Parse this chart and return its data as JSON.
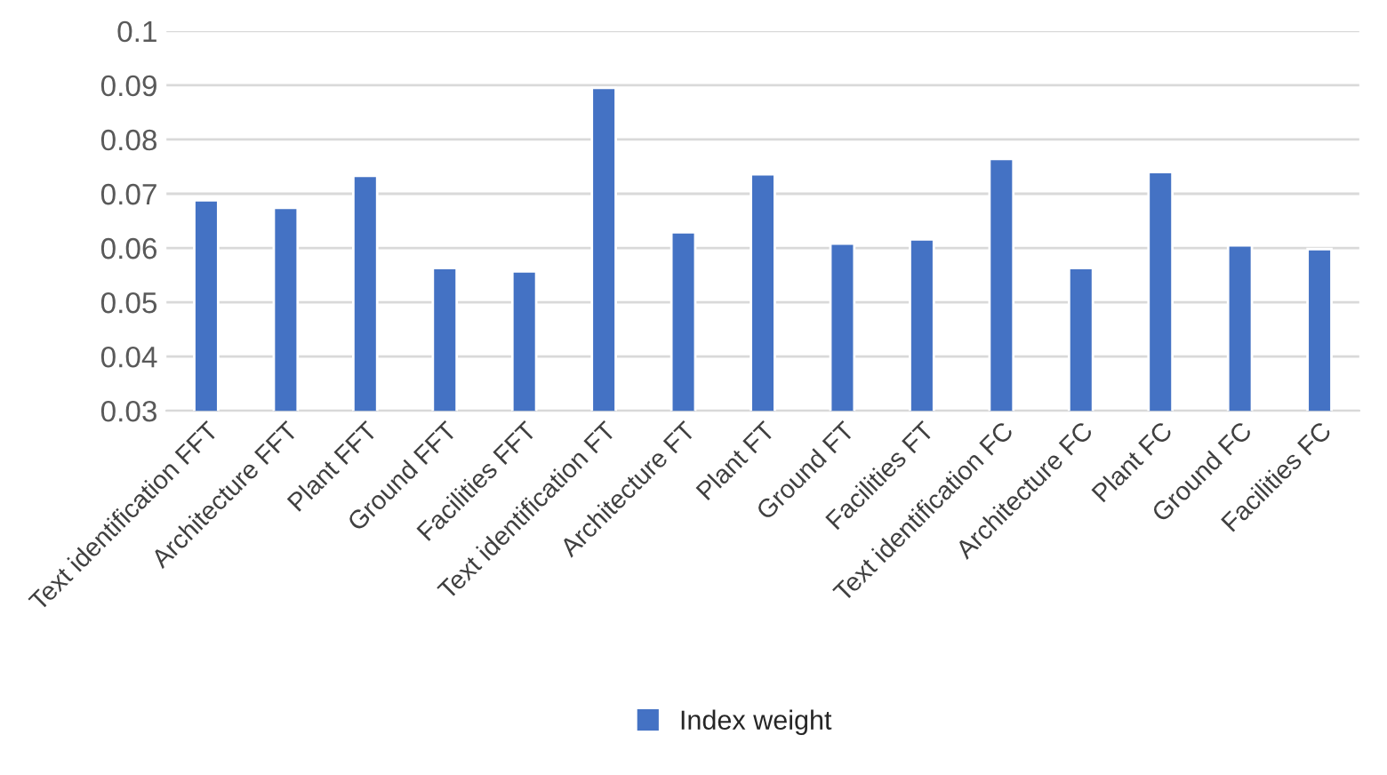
{
  "chart_data": {
    "type": "bar",
    "categories": [
      "Text identification FFT",
      "Architecture FFT",
      "Plant FFT",
      "Ground FFT",
      "Facilities FFT",
      "Text identification FT",
      "Architecture FT",
      "Plant FT",
      "Ground FT",
      "Facilities FT",
      "Text identification FC",
      "Architecture FC",
      "Plant FC",
      "Ground FC",
      "Facilities FC"
    ],
    "series": [
      {
        "name": "Index weight",
        "color": "#4472c4",
        "values": [
          0.0688,
          0.0674,
          0.0733,
          0.0563,
          0.0557,
          0.0895,
          0.0629,
          0.0736,
          0.0608,
          0.0616,
          0.0764,
          0.0563,
          0.074,
          0.0605,
          0.0598
        ]
      }
    ],
    "ylim": [
      0.03,
      0.1
    ],
    "yticks": [
      {
        "value": 0.03,
        "label": "0.03"
      },
      {
        "value": 0.04,
        "label": "0.04"
      },
      {
        "value": 0.05,
        "label": "0.05"
      },
      {
        "value": 0.06,
        "label": "0.06"
      },
      {
        "value": 0.07,
        "label": "0.07"
      },
      {
        "value": 0.08,
        "label": "0.08"
      },
      {
        "value": 0.09,
        "label": "0.09"
      },
      {
        "value": 0.1,
        "label": "0.1"
      }
    ],
    "grid": "y",
    "legend": "bottom"
  }
}
